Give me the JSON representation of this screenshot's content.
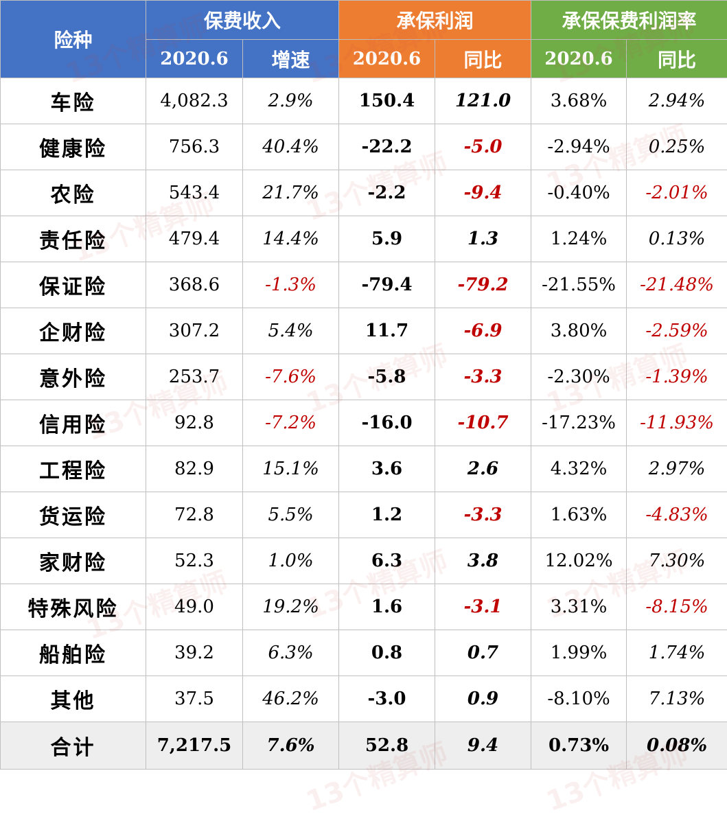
{
  "header": {
    "category_label": "险种",
    "groups": [
      {
        "label": "保费收入",
        "sub": [
          "2020.6",
          "增速"
        ],
        "color": "#4472c4"
      },
      {
        "label": "承保利润",
        "sub": [
          "2020.6",
          "同比"
        ],
        "color": "#ed7d31"
      },
      {
        "label": "承保保费利润率",
        "sub": [
          "2020.6",
          "同比"
        ],
        "color": "#70ad47"
      }
    ]
  },
  "rows": [
    {
      "name": "车险",
      "cells": [
        "4,082.3",
        "2.9%",
        "150.4",
        "121.0",
        "3.68%",
        "2.94%"
      ]
    },
    {
      "name": "健康险",
      "cells": [
        "756.3",
        "40.4%",
        "-22.2",
        "-5.0",
        "-2.94%",
        "0.25%"
      ]
    },
    {
      "name": "农险",
      "cells": [
        "543.4",
        "21.7%",
        "-2.2",
        "-9.4",
        "-0.40%",
        "-2.01%"
      ]
    },
    {
      "name": "责任险",
      "cells": [
        "479.4",
        "14.4%",
        "5.9",
        "1.3",
        "1.24%",
        "0.13%"
      ]
    },
    {
      "name": "保证险",
      "cells": [
        "368.6",
        "-1.3%",
        "-79.4",
        "-79.2",
        "-21.55%",
        "-21.48%"
      ]
    },
    {
      "name": "企财险",
      "cells": [
        "307.2",
        "5.4%",
        "11.7",
        "-6.9",
        "3.80%",
        "-2.59%"
      ]
    },
    {
      "name": "意外险",
      "cells": [
        "253.7",
        "-7.6%",
        "-5.8",
        "-3.3",
        "-2.30%",
        "-1.39%"
      ]
    },
    {
      "name": "信用险",
      "cells": [
        "92.8",
        "-7.2%",
        "-16.0",
        "-10.7",
        "-17.23%",
        "-11.93%"
      ]
    },
    {
      "name": "工程险",
      "cells": [
        "82.9",
        "15.1%",
        "3.6",
        "2.6",
        "4.32%",
        "2.97%"
      ]
    },
    {
      "name": "货运险",
      "cells": [
        "72.8",
        "5.5%",
        "1.2",
        "-3.3",
        "1.63%",
        "-4.83%"
      ]
    },
    {
      "name": "家财险",
      "cells": [
        "52.3",
        "1.0%",
        "6.3",
        "3.8",
        "12.02%",
        "7.30%"
      ]
    },
    {
      "name": "特殊风险",
      "cells": [
        "49.0",
        "19.2%",
        "1.6",
        "-3.1",
        "3.31%",
        "-8.15%"
      ]
    },
    {
      "name": "船舶险",
      "cells": [
        "39.2",
        "6.3%",
        "0.8",
        "0.7",
        "1.99%",
        "1.74%"
      ]
    },
    {
      "name": "其他",
      "cells": [
        "37.5",
        "46.2%",
        "-3.0",
        "0.9",
        "-8.10%",
        "7.13%"
      ]
    }
  ],
  "total": {
    "name": "合计",
    "cells": [
      "7,217.5",
      "7.6%",
      "52.8",
      "9.4",
      "0.73%",
      "0.08%"
    ]
  },
  "watermark": "13个精算师",
  "colors": {
    "negative": "#c00000",
    "total_bg": "#eeeeee"
  }
}
